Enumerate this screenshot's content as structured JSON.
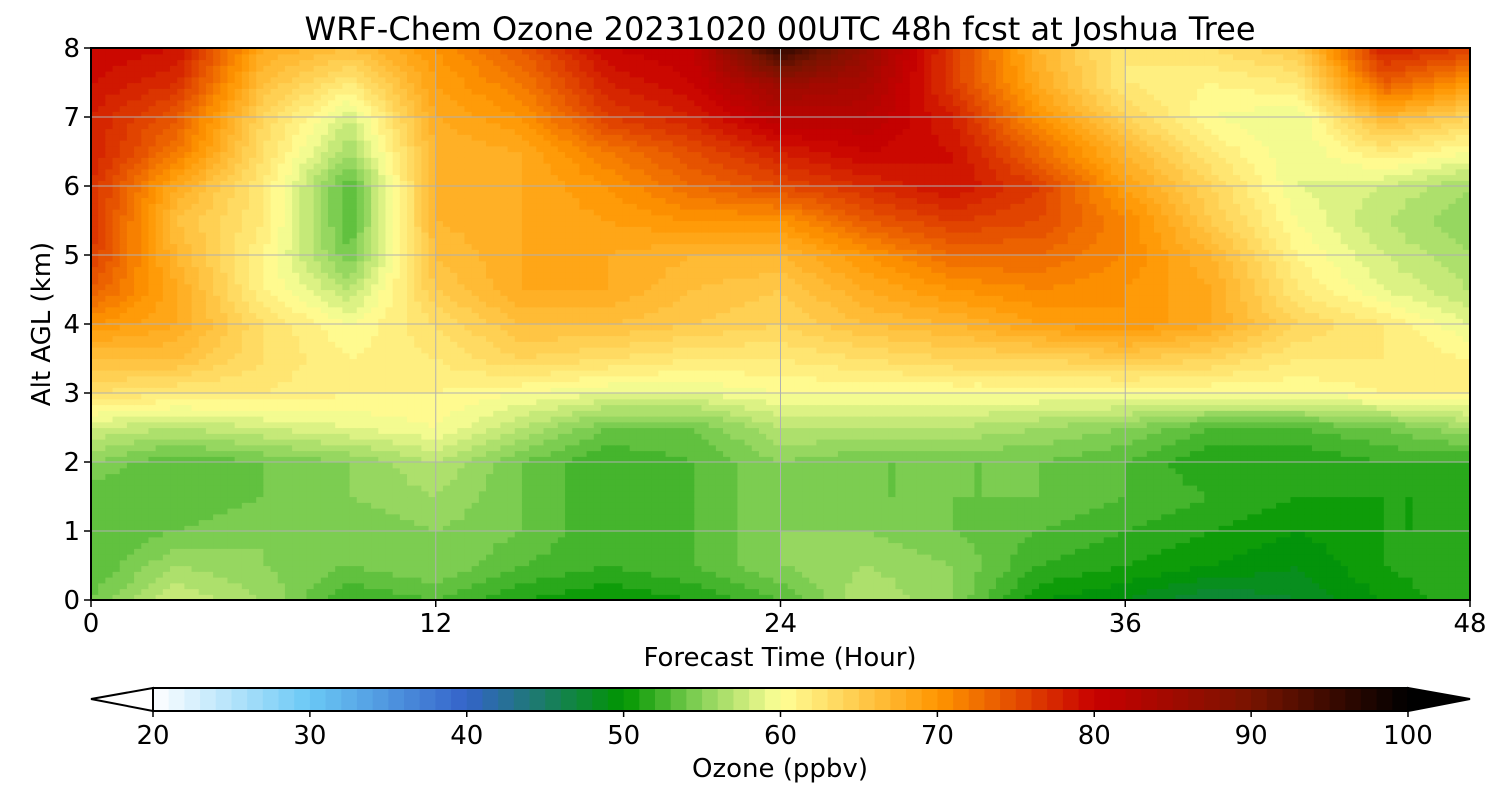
{
  "chart_data": {
    "type": "heatmap",
    "title": "WRF-Chem Ozone  20231020 00UTC 48h fcst at Joshua Tree",
    "xlabel": "Forecast Time (Hour)",
    "ylabel": "Alt AGL (km)",
    "xlim": [
      0,
      48
    ],
    "ylim": [
      0,
      8
    ],
    "xticks": [
      0,
      12,
      24,
      36,
      48
    ],
    "yticks": [
      0,
      1,
      2,
      3,
      4,
      5,
      6,
      7,
      8
    ],
    "grid": true,
    "x": [
      0,
      3,
      6,
      9,
      12,
      15,
      18,
      21,
      24,
      27,
      30,
      33,
      36,
      39,
      42,
      45,
      48
    ],
    "y": [
      0,
      0.5,
      1,
      1.5,
      2,
      2.5,
      3,
      3.5,
      4,
      4.5,
      5,
      5.5,
      6,
      6.5,
      7,
      7.5,
      8
    ],
    "z": [
      [
        54,
        58,
        56,
        52,
        53,
        51,
        50,
        51,
        53,
        57,
        55,
        50,
        49,
        47,
        48,
        50,
        52
      ],
      [
        53,
        56,
        55,
        54,
        55,
        53,
        52,
        53,
        55,
        56,
        55,
        52,
        51,
        50,
        49,
        51,
        52
      ],
      [
        53,
        54,
        55,
        54,
        55,
        54,
        52,
        53,
        55,
        55,
        54,
        53,
        52,
        51,
        50,
        51,
        51
      ],
      [
        53,
        53,
        54,
        55,
        56,
        54,
        52,
        53,
        55,
        54,
        54,
        54,
        53,
        52,
        51,
        51,
        51
      ],
      [
        55,
        53,
        54,
        55,
        57,
        54,
        52,
        53,
        55,
        54,
        54,
        54,
        53,
        51,
        51,
        52,
        52
      ],
      [
        58,
        57,
        58,
        59,
        60,
        57,
        54,
        54,
        57,
        57,
        57,
        56,
        55,
        53,
        53,
        54,
        56
      ],
      [
        63,
        62,
        62,
        61,
        61,
        60,
        59,
        59,
        60,
        60,
        60,
        60,
        60,
        60,
        60,
        61,
        61
      ],
      [
        66,
        66,
        63,
        61,
        62,
        64,
        63,
        62,
        62,
        63,
        64,
        64,
        65,
        64,
        62,
        62,
        61
      ],
      [
        70,
        68,
        63,
        60,
        63,
        66,
        66,
        65,
        64,
        66,
        67,
        69,
        70,
        68,
        64,
        62,
        59
      ],
      [
        74,
        68,
        61,
        57,
        65,
        68,
        68,
        66,
        65,
        68,
        70,
        71,
        70,
        68,
        62,
        59,
        57
      ],
      [
        76,
        67,
        61,
        54,
        66,
        68,
        68,
        67,
        67,
        70,
        73,
        73,
        71,
        67,
        61,
        58,
        56
      ],
      [
        77,
        66,
        62,
        53,
        67,
        68,
        69,
        70,
        70,
        74,
        76,
        75,
        71,
        65,
        60,
        57,
        55
      ],
      [
        77,
        68,
        62,
        53,
        67,
        68,
        70,
        73,
        75,
        77,
        79,
        76,
        69,
        64,
        59,
        58,
        56
      ],
      [
        78,
        72,
        63,
        56,
        67,
        68,
        72,
        75,
        78,
        80,
        79,
        73,
        67,
        62,
        59,
        62,
        60
      ],
      [
        78,
        74,
        64,
        58,
        68,
        70,
        76,
        78,
        82,
        82,
        78,
        70,
        64,
        60,
        59,
        67,
        64
      ],
      [
        79,
        77,
        66,
        62,
        69,
        72,
        78,
        80,
        86,
        84,
        76,
        68,
        62,
        61,
        62,
        74,
        70
      ],
      [
        80,
        79,
        68,
        66,
        70,
        74,
        80,
        81,
        96,
        86,
        76,
        67,
        62,
        63,
        65,
        78,
        76
      ]
    ],
    "colorbar": {
      "label": "Ozone  (ppbv)",
      "range": [
        20,
        100
      ],
      "ticks": [
        20,
        30,
        40,
        50,
        60,
        70,
        80,
        90,
        100
      ],
      "extend": "both",
      "under_color": "#ffffff",
      "over_color": "#000000"
    },
    "colormap": [
      [
        20,
        "#ffffff"
      ],
      [
        30,
        "#6ac8f5"
      ],
      [
        40,
        "#3463c9"
      ],
      [
        50,
        "#009600"
      ],
      [
        55,
        "#8ad35a"
      ],
      [
        60,
        "#ffff96"
      ],
      [
        70,
        "#ff9600"
      ],
      [
        80,
        "#c80000"
      ],
      [
        90,
        "#781400"
      ],
      [
        100,
        "#000000"
      ]
    ]
  }
}
